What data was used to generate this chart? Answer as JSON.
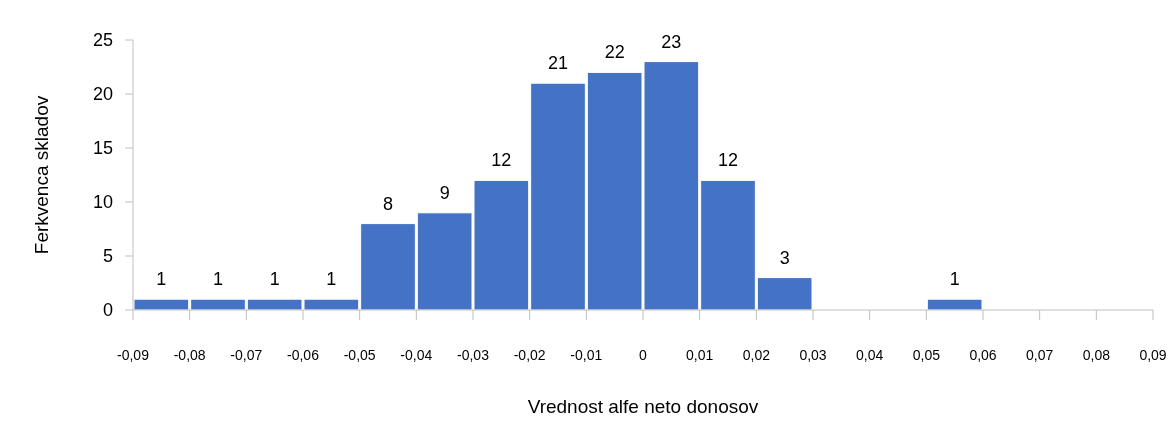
{
  "chart_data": {
    "type": "histogram",
    "xlabel": "Vrednost alfe neto donosov",
    "ylabel": "Ferkvenca skladov",
    "bins": [
      -0.09,
      -0.08,
      -0.07,
      -0.06,
      -0.05,
      -0.04,
      -0.03,
      -0.02,
      -0.01,
      0,
      0.01,
      0.02,
      0.03,
      0.04,
      0.05,
      0.06,
      0.07,
      0.08,
      0.09
    ],
    "values": [
      1,
      1,
      1,
      1,
      8,
      9,
      12,
      21,
      22,
      23,
      12,
      3,
      0,
      0,
      1,
      0,
      0,
      0
    ],
    "value_labels": [
      "1",
      "1",
      "1",
      "1",
      "8",
      "9",
      "12",
      "21",
      "22",
      "23",
      "12",
      "3",
      null,
      null,
      "1",
      null,
      null,
      null
    ],
    "color": "#4472c4",
    "xlim": [
      -0.09,
      0.09
    ],
    "xticks": [
      {
        "value": -0.09,
        "label": "-0,09"
      },
      {
        "value": -0.08,
        "label": "-0,08"
      },
      {
        "value": -0.07,
        "label": "-0,07"
      },
      {
        "value": -0.06,
        "label": "-0,06"
      },
      {
        "value": -0.05,
        "label": "-0,05"
      },
      {
        "value": -0.04,
        "label": "-0,04"
      },
      {
        "value": -0.03,
        "label": "-0,03"
      },
      {
        "value": -0.02,
        "label": "-0,02"
      },
      {
        "value": -0.01,
        "label": "-0,01"
      },
      0,
      {
        "value": 0.01,
        "label": "0,01"
      },
      {
        "value": 0.02,
        "label": "0,02"
      },
      {
        "value": 0.03,
        "label": "0,03"
      },
      {
        "value": 0.04,
        "label": "0,04"
      },
      {
        "value": 0.05,
        "label": "0,05"
      },
      {
        "value": 0.06,
        "label": "0,06"
      },
      {
        "value": 0.07,
        "label": "0,07"
      },
      {
        "value": 0.08,
        "label": "0,08"
      },
      {
        "value": 0.09,
        "label": "0,09"
      }
    ],
    "ylim": [
      0,
      25
    ],
    "yticks": [
      0,
      5,
      10,
      15,
      20,
      25
    ],
    "grid": false
  }
}
